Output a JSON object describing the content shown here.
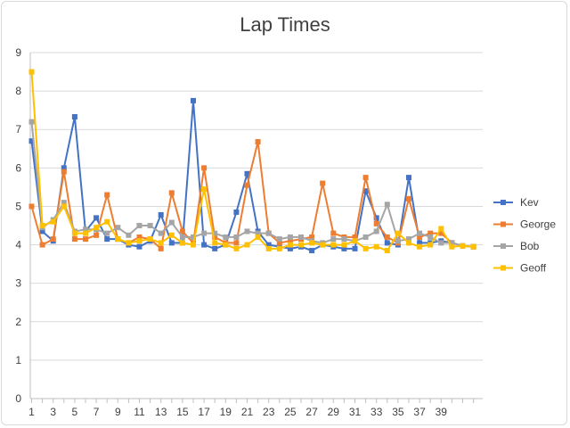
{
  "chart_data": {
    "type": "line",
    "title": "Lap Times",
    "xlabel": "",
    "ylabel": "",
    "ylim": [
      0,
      9
    ],
    "yticks": [
      "0",
      "1",
      "2",
      "3",
      "4",
      "5",
      "6",
      "7",
      "8",
      "9"
    ],
    "x": [
      1,
      2,
      3,
      4,
      5,
      6,
      7,
      8,
      9,
      10,
      11,
      12,
      13,
      14,
      15,
      16,
      17,
      18,
      19,
      20,
      21,
      22,
      23,
      24,
      25,
      26,
      27,
      28,
      29,
      30,
      31,
      32,
      33,
      34,
      35,
      36,
      37,
      38,
      39,
      40,
      41,
      42
    ],
    "xtick_labels": [
      "1",
      "3",
      "5",
      "7",
      "9",
      "11",
      "13",
      "15",
      "17",
      "19",
      "21",
      "23",
      "25",
      "27",
      "29",
      "31",
      "33",
      "35",
      "37",
      "39"
    ],
    "grid": true,
    "legend_position": "right",
    "series": [
      {
        "name": "Kev",
        "color": "#4472c4",
        "values": [
          6.7,
          4.35,
          4.1,
          6.0,
          7.33,
          4.35,
          4.7,
          4.15,
          4.15,
          4.0,
          3.95,
          4.1,
          4.78,
          4.05,
          4.05,
          7.75,
          4.0,
          3.9,
          4.0,
          4.85,
          5.85,
          4.35,
          4.0,
          3.95,
          3.9,
          3.95,
          3.85,
          4.0,
          3.95,
          3.9,
          3.9,
          5.4,
          4.7,
          4.05,
          4.0,
          5.75,
          4.05,
          4.05,
          4.1,
          4.05,
          3.97,
          3.95
        ]
      },
      {
        "name": "George",
        "color": "#ed7d31",
        "values": [
          5.0,
          4.0,
          4.15,
          5.9,
          4.15,
          4.15,
          4.25,
          5.3,
          4.15,
          4.05,
          4.2,
          4.15,
          3.9,
          5.35,
          4.35,
          4.05,
          6.0,
          4.2,
          4.05,
          4.05,
          5.55,
          6.68,
          4.3,
          4.05,
          4.1,
          4.15,
          4.2,
          5.6,
          4.3,
          4.2,
          4.2,
          5.75,
          4.55,
          4.2,
          4.05,
          5.2,
          4.2,
          4.3,
          4.3,
          4.05,
          3.97,
          3.95
        ]
      },
      {
        "name": "Bob",
        "color": "#a5a5a5",
        "values": [
          7.2,
          4.45,
          4.65,
          5.1,
          4.35,
          4.4,
          4.4,
          4.3,
          4.45,
          4.25,
          4.5,
          4.5,
          4.3,
          4.58,
          4.2,
          4.2,
          4.3,
          4.3,
          4.2,
          4.2,
          4.35,
          4.3,
          4.3,
          4.15,
          4.2,
          4.2,
          4.1,
          4.05,
          4.15,
          4.15,
          4.1,
          4.2,
          4.35,
          5.05,
          4.1,
          4.15,
          4.3,
          4.2,
          4.05,
          4.05,
          3.97,
          3.95
        ]
      },
      {
        "name": "Geoff",
        "color": "#ffc000",
        "values": [
          8.5,
          4.5,
          4.6,
          5.0,
          4.3,
          4.3,
          4.45,
          4.6,
          4.15,
          4.05,
          4.1,
          4.15,
          4.05,
          4.25,
          4.05,
          4.0,
          5.45,
          4.05,
          4.0,
          3.9,
          4.0,
          4.2,
          3.9,
          3.9,
          4.0,
          4.0,
          4.05,
          4.0,
          4.0,
          4.0,
          4.1,
          3.9,
          3.95,
          3.85,
          4.3,
          4.05,
          3.95,
          4.0,
          4.42,
          3.95,
          3.97,
          3.95
        ]
      }
    ]
  }
}
